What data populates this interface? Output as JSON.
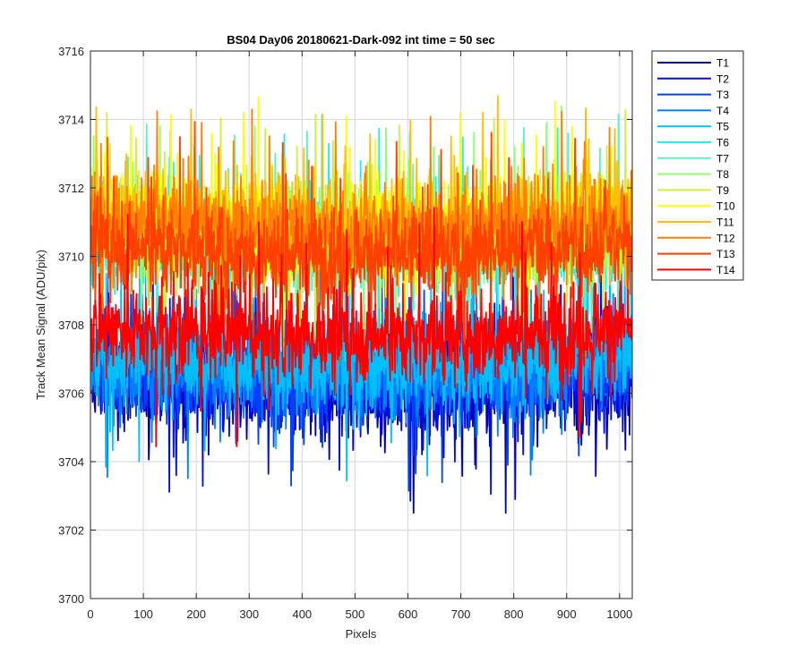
{
  "chart_data": {
    "type": "line",
    "title": "BS04 Day06 20180621-Dark-092 int time = 50 sec",
    "xlabel": "Pixels",
    "ylabel": "Track Mean Signal (ADU/pix)",
    "xlim": [
      0,
      1024
    ],
    "ylim": [
      3700,
      3716
    ],
    "xticks": [
      0,
      100,
      200,
      300,
      400,
      500,
      600,
      700,
      800,
      900,
      1000
    ],
    "yticks": [
      3700,
      3702,
      3704,
      3706,
      3708,
      3710,
      3712,
      3714,
      3716
    ],
    "grid": true,
    "legend_position": "outside-top-right",
    "sample_count": 1024,
    "series": [
      {
        "name": "T1",
        "color": "#0000B4",
        "mean": 3706.2,
        "min": 3702.5,
        "max": 3710.0
      },
      {
        "name": "T2",
        "color": "#0010DC",
        "mean": 3706.4,
        "min": 3702.6,
        "max": 3710.2
      },
      {
        "name": "T3",
        "color": "#0040FF",
        "mean": 3706.6,
        "min": 3702.9,
        "max": 3710.5
      },
      {
        "name": "T4",
        "color": "#0080FF",
        "mean": 3706.8,
        "min": 3703.2,
        "max": 3711.0
      },
      {
        "name": "T5",
        "color": "#00BFFF",
        "mean": 3707.0,
        "min": 3703.3,
        "max": 3711.5
      },
      {
        "name": "T6",
        "color": "#20EFEF",
        "mean": 3710.4,
        "min": 3706.5,
        "max": 3714.7
      },
      {
        "name": "T7",
        "color": "#60F0C0",
        "mean": 3710.5,
        "min": 3706.6,
        "max": 3714.8
      },
      {
        "name": "T8",
        "color": "#90FF70",
        "mean": 3710.6,
        "min": 3706.7,
        "max": 3714.9
      },
      {
        "name": "T9",
        "color": "#D0F040",
        "mean": 3710.8,
        "min": 3706.8,
        "max": 3715.3
      },
      {
        "name": "T10",
        "color": "#FFFF00",
        "mean": 3711.0,
        "min": 3707.0,
        "max": 3715.4
      },
      {
        "name": "T11",
        "color": "#FFBF00",
        "mean": 3711.0,
        "min": 3707.0,
        "max": 3715.3
      },
      {
        "name": "T12",
        "color": "#FF8000",
        "mean": 3710.9,
        "min": 3707.0,
        "max": 3715.0
      },
      {
        "name": "T13",
        "color": "#FF4000",
        "mean": 3710.2,
        "min": 3706.2,
        "max": 3714.4
      },
      {
        "name": "T14",
        "color": "#FF0000",
        "mean": 3707.8,
        "min": 3703.6,
        "max": 3711.5
      }
    ]
  }
}
